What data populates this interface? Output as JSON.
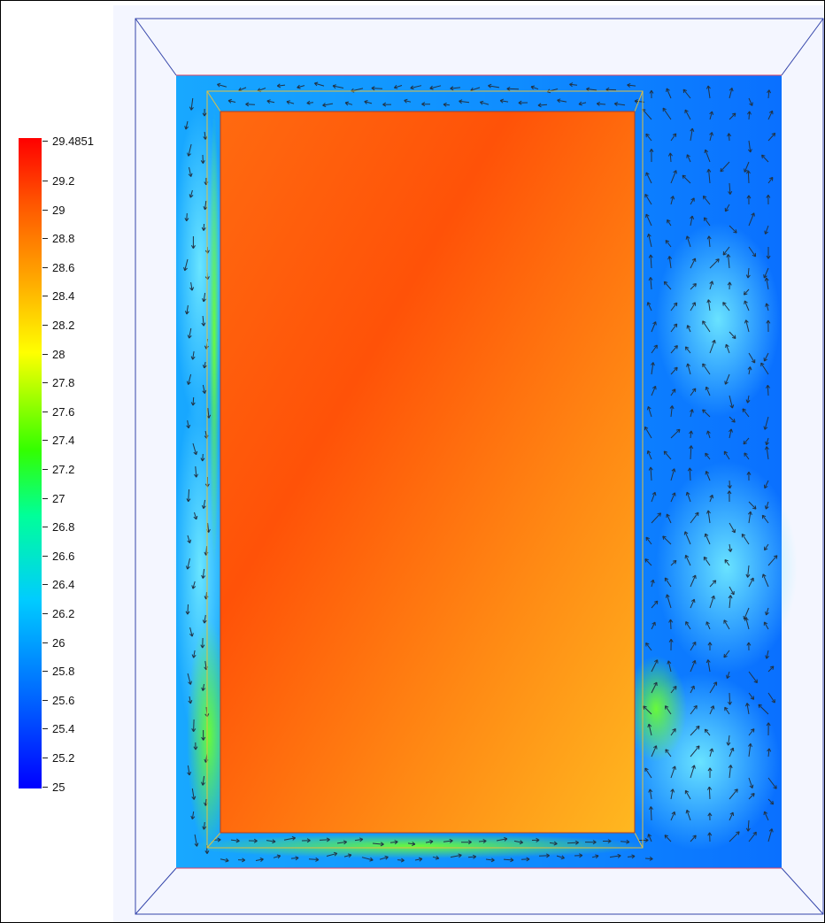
{
  "colorbar": {
    "max_label": "29.4851",
    "ticks": [
      "29.2",
      "29",
      "28.8",
      "28.6",
      "28.4",
      "28.2",
      "28",
      "27.8",
      "27.6",
      "27.4",
      "27.2",
      "27",
      "26.8",
      "26.6",
      "26.4",
      "26.2",
      "26",
      "25.8",
      "25.6",
      "25.4",
      "25.2",
      "25"
    ],
    "range": [
      25,
      29.4851
    ],
    "colors": [
      "#0000ff",
      "#0066ff",
      "#00ccff",
      "#00ff99",
      "#33ff00",
      "#ffff00",
      "#ffaa00",
      "#ff5500",
      "#ff0000"
    ]
  },
  "field": {
    "solid_colors": [
      "#ff5a0a",
      "#ff8a14",
      "#ffb41e"
    ],
    "fluid_colors": [
      "#0a64ff",
      "#14b4ff",
      "#64e6ff",
      "#78ff3c"
    ],
    "box_line_color": "#3344aa",
    "inner_outline_color": "#e0c040",
    "accent_line_color": "#dd4466"
  }
}
